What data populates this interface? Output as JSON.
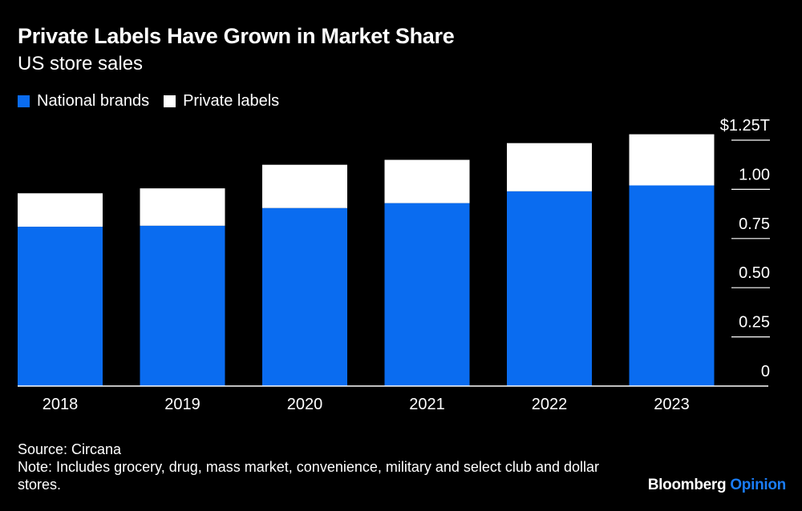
{
  "header": {
    "title": "Private Labels Have Grown in Market Share",
    "subtitle": "US store sales"
  },
  "colors": {
    "national": "#0a6cf0",
    "private": "#ffffff",
    "background": "#000000",
    "axis": "#ffffff",
    "brand_accent": "#1a7cf5"
  },
  "chart_data": {
    "type": "bar",
    "stacked": true,
    "categories": [
      "2018",
      "2019",
      "2020",
      "2021",
      "2022",
      "2023"
    ],
    "series": [
      {
        "name": "National brands",
        "values": [
          0.81,
          0.815,
          0.905,
          0.93,
          0.99,
          1.02
        ]
      },
      {
        "name": "Private labels",
        "values": [
          0.17,
          0.19,
          0.22,
          0.22,
          0.245,
          0.26
        ]
      }
    ],
    "ylim": [
      0,
      1.25
    ],
    "yticks": [
      {
        "value": 0,
        "label": "0"
      },
      {
        "value": 0.25,
        "label": "0.25"
      },
      {
        "value": 0.5,
        "label": "0.50"
      },
      {
        "value": 0.75,
        "label": "0.75"
      },
      {
        "value": 1.0,
        "label": "1.00"
      },
      {
        "value": 1.25,
        "label": "$1.25T"
      }
    ],
    "y_axis_position": "right",
    "legend_position": "top-left"
  },
  "footer": {
    "source": "Source: Circana",
    "note": "Note: Includes grocery, drug, mass market, convenience, military and select club and dollar stores.",
    "brand_name": "Bloomberg",
    "brand_suffix": "Opinion"
  }
}
